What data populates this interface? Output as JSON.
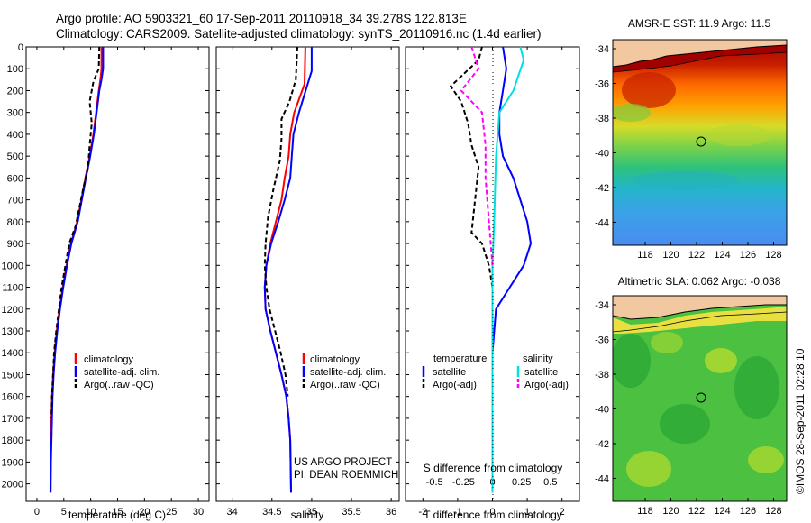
{
  "header": {
    "line1": "Argo profile: AO 5903321_60 17-Sep-2011 20110918_34 39.278S 122.813E",
    "line2": "Climatology: CARS2009. Satellite-adjusted climatology: synTS_20110916.nc (1.4d earlier)"
  },
  "panels": {
    "temperature": {
      "xlabel": "temperature (deg C)",
      "legend": [
        "climatology",
        "satellite-adj. clim.",
        "Argo(..raw -QC)"
      ]
    },
    "salinity": {
      "xlabel": "salinity",
      "legend": [
        "climatology",
        "satellite-adj. clim.",
        "Argo(..raw -QC)"
      ],
      "note1": "US ARGO PROJECT",
      "note2": "PI: DEAN ROEMMICH"
    },
    "difference": {
      "xlabel": "T difference from climatology",
      "xlabel_top": "S difference from climatology",
      "legend_temp_title": "temperature",
      "legend_sal_title": "salinity",
      "legend_temp": [
        "satellite",
        "Argo(-adj)"
      ],
      "legend_sal": [
        "satellite",
        "Argo(-adj)"
      ]
    }
  },
  "maps": {
    "sst_title": "AMSR-E SST: 11.9 Argo: 11.5",
    "sla_title": "Altimetric SLA: 0.062 Argo: -0.038",
    "lat_ticks": [
      "-34",
      "-36",
      "-38",
      "-40",
      "-42",
      "-44"
    ],
    "lon_ticks": [
      "118",
      "120",
      "122",
      "124",
      "126",
      "128"
    ],
    "float_position": {
      "lon": 122.813,
      "lat": -39.278
    }
  },
  "credit": "©IMOS 28-Sep-2011 02:28:10",
  "colors": {
    "climatology": "#ff0000",
    "satellite": "#0000ff",
    "argo": "#000000",
    "sal_satellite": "#00e0e0",
    "sal_argo": "#ff00ff",
    "land": "#f2c8a0"
  },
  "chart_data": [
    {
      "type": "line",
      "xlabel": "temperature (deg C)",
      "ylabel": "",
      "xlim": [
        -2,
        32
      ],
      "ylim": [
        2080,
        0
      ],
      "xticks": [
        0,
        5,
        10,
        15,
        20,
        25,
        30
      ],
      "yticks": [
        0,
        100,
        200,
        300,
        400,
        500,
        600,
        700,
        800,
        900,
        1000,
        1100,
        1200,
        1300,
        1400,
        1500,
        1600,
        1700,
        1800,
        1900,
        2000
      ],
      "series": [
        {
          "name": "climatology",
          "x": [
            12.0,
            12.0,
            11.8,
            11.5,
            11.0,
            10.5,
            9.8,
            9.0,
            7.5,
            6.3,
            5.5,
            4.8,
            4.2,
            3.7,
            3.3,
            3.0,
            2.8,
            2.7,
            2.6,
            2.55,
            2.5
          ],
          "y": [
            0,
            100,
            150,
            200,
            300,
            400,
            500,
            600,
            800,
            900,
            1000,
            1100,
            1200,
            1300,
            1400,
            1500,
            1600,
            1700,
            1800,
            1900,
            2040
          ]
        },
        {
          "name": "satellite-adj. clim.",
          "x": [
            12.3,
            12.3,
            12.0,
            11.6,
            11.1,
            10.6,
            9.9,
            9.1,
            7.6,
            6.4,
            5.6,
            4.9,
            4.3,
            3.8,
            3.4,
            3.1,
            2.9,
            2.8,
            2.7,
            2.6,
            2.55
          ],
          "y": [
            0,
            100,
            150,
            200,
            300,
            400,
            500,
            600,
            800,
            900,
            1000,
            1100,
            1200,
            1300,
            1400,
            1500,
            1600,
            1700,
            1800,
            1900,
            2040
          ]
        },
        {
          "name": "Argo(..raw -QC)",
          "x": [
            11.6,
            11.5,
            10.5,
            9.8,
            10.2,
            9.8,
            9.5,
            8.6,
            7.2,
            6.0,
            5.3,
            4.6,
            4.1,
            3.6,
            3.2,
            3.0,
            2.8,
            2.7
          ],
          "y": [
            0,
            100,
            160,
            250,
            350,
            450,
            550,
            650,
            820,
            900,
            1000,
            1100,
            1200,
            1300,
            1400,
            1500,
            1600,
            1700
          ]
        }
      ]
    },
    {
      "type": "line",
      "xlabel": "salinity",
      "ylabel": "",
      "xlim": [
        33.8,
        36.1
      ],
      "ylim": [
        2080,
        0
      ],
      "xticks": [
        34,
        34.5,
        35,
        35.5,
        36
      ],
      "series": [
        {
          "name": "climatology",
          "x": [
            34.92,
            34.91,
            34.88,
            34.78,
            34.73,
            34.71,
            34.66,
            34.62,
            34.55,
            34.48,
            34.43,
            34.41,
            34.42,
            34.48,
            34.55,
            34.62,
            34.68,
            34.71,
            34.73,
            34.74
          ],
          "y": [
            0,
            170,
            200,
            300,
            400,
            500,
            600,
            700,
            800,
            900,
            1000,
            1100,
            1200,
            1300,
            1400,
            1500,
            1600,
            1700,
            1800,
            2040
          ]
        },
        {
          "name": "satellite-adj. clim.",
          "x": [
            35.0,
            35.0,
            35.0,
            34.84,
            34.77,
            34.75,
            34.73,
            34.66,
            34.58,
            34.49,
            34.43,
            34.41,
            34.42,
            34.48,
            34.55,
            34.62,
            34.68,
            34.71,
            34.73,
            34.74
          ],
          "y": [
            0,
            60,
            110,
            300,
            400,
            500,
            600,
            700,
            800,
            900,
            1000,
            1100,
            1200,
            1300,
            1400,
            1500,
            1600,
            1700,
            1800,
            2040
          ]
        },
        {
          "name": "Argo(..raw -QC)",
          "x": [
            34.82,
            34.81,
            34.8,
            34.72,
            34.62,
            34.62,
            34.6,
            34.52,
            34.45,
            34.42,
            34.41,
            34.43,
            34.47,
            34.54,
            34.61,
            34.67,
            34.7
          ],
          "y": [
            0,
            80,
            150,
            250,
            330,
            420,
            520,
            650,
            780,
            900,
            1000,
            1100,
            1200,
            1300,
            1400,
            1500,
            1600
          ]
        }
      ]
    },
    {
      "type": "line",
      "xlabel": "T difference from climatology",
      "xlabel_top": "S difference from climatology",
      "xlim": [
        -2.5,
        2.5
      ],
      "ylim": [
        2080,
        0
      ],
      "xticks": [
        -2,
        -1,
        0,
        1,
        2
      ],
      "xticks_top": [
        -0.5,
        -0.25,
        0,
        0.25,
        0.5
      ],
      "series": [
        {
          "name": "satellite (temperature)",
          "x": [
            0.3,
            0.4,
            0.3,
            0.2,
            0.2,
            0.3,
            0.6,
            0.8,
            1.0,
            1.1,
            0.9,
            0.5,
            0.1,
            0.0,
            0.0,
            0.0,
            0.0
          ],
          "y": [
            0,
            100,
            200,
            300,
            400,
            500,
            600,
            700,
            800,
            900,
            1000,
            1100,
            1200,
            1400,
            1600,
            1800,
            2040
          ]
        },
        {
          "name": "Argo(-adj) (temperature)",
          "x": [
            -0.3,
            -0.4,
            -1.2,
            -0.9,
            -0.7,
            -0.6,
            -0.4,
            -0.5,
            -0.6,
            -0.3,
            -0.1,
            0.0
          ],
          "y": [
            0,
            60,
            180,
            250,
            350,
            450,
            550,
            700,
            850,
            900,
            1000,
            1100
          ]
        },
        {
          "name": "satellite (salinity)",
          "x": [
            0.8,
            0.9,
            0.6,
            0.2,
            0.1,
            0.05,
            0.0,
            0.0,
            0.0,
            0.0,
            0.0
          ],
          "y": [
            0,
            60,
            200,
            300,
            500,
            800,
            1000,
            1200,
            1500,
            1800,
            2040
          ]
        },
        {
          "name": "Argo(-adj) (salinity)",
          "x": [
            -0.6,
            -0.4,
            -0.9,
            -0.3,
            -0.2,
            -0.2,
            -0.1,
            0.0
          ],
          "y": [
            0,
            100,
            200,
            300,
            450,
            600,
            800,
            1000
          ]
        }
      ]
    },
    {
      "type": "heatmap",
      "title": "AMSR-E SST: 11.9 Argo: 11.5",
      "xticks": [
        118,
        120,
        122,
        124,
        126,
        128
      ],
      "yticks": [
        -34,
        -36,
        -38,
        -40,
        -42,
        -44
      ]
    },
    {
      "type": "heatmap",
      "title": "Altimetric SLA: 0.062 Argo: -0.038",
      "xticks": [
        118,
        120,
        122,
        124,
        126,
        128
      ],
      "yticks": [
        -34,
        -36,
        -38,
        -40,
        -42,
        -44
      ]
    }
  ]
}
